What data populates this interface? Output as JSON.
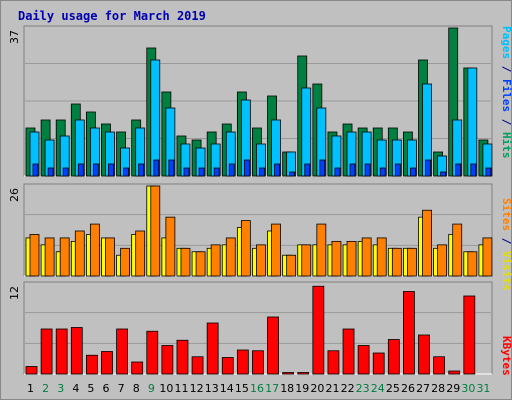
{
  "title": "Daily usage for March 2019",
  "colors": {
    "hits": "#008040",
    "files": "#00c0ff",
    "pages": "#0040ff",
    "visits": "#ffff00",
    "sites": "#ff8000",
    "kbytes": "#ff0000",
    "weekend_day": "#008040",
    "weekday_day": "#000000",
    "panel_bg": "#c0c0c0"
  },
  "chart_data": [
    {
      "type": "bar",
      "panel": "top",
      "ymax_label": "37",
      "ylim": [
        0,
        37
      ],
      "right_label_parts": [
        "Pages",
        " / ",
        "Files",
        " / ",
        "Hits"
      ],
      "categories": [
        "1",
        "2",
        "3",
        "4",
        "5",
        "6",
        "7",
        "8",
        "9",
        "10",
        "11",
        "12",
        "13",
        "14",
        "15",
        "16",
        "17",
        "18",
        "19",
        "20",
        "21",
        "22",
        "23",
        "24",
        "25",
        "26",
        "27",
        "28",
        "29",
        "30",
        "31"
      ],
      "series": [
        {
          "name": "Hits",
          "values": [
            12,
            14,
            14,
            18,
            16,
            13,
            11,
            14,
            32,
            21,
            10,
            9,
            11,
            13,
            21,
            12,
            20,
            6,
            30,
            23,
            11,
            13,
            12,
            12,
            12,
            11,
            29,
            6,
            37,
            27,
            9
          ]
        },
        {
          "name": "Files",
          "values": [
            11,
            9,
            10,
            14,
            12,
            11,
            7,
            12,
            29,
            17,
            8,
            7,
            8,
            11,
            19,
            8,
            14,
            6,
            22,
            17,
            10,
            11,
            11,
            9,
            9,
            9,
            23,
            5,
            14,
            27,
            8
          ]
        },
        {
          "name": "Pages",
          "values": [
            3,
            2,
            2,
            3,
            3,
            3,
            2,
            3,
            4,
            4,
            2,
            2,
            2,
            3,
            4,
            2,
            3,
            1,
            3,
            4,
            2,
            3,
            3,
            2,
            3,
            2,
            4,
            1,
            3,
            3,
            2
          ]
        }
      ]
    },
    {
      "type": "bar",
      "panel": "middle",
      "ymax_label": "26",
      "ylim": [
        0,
        26
      ],
      "right_label_parts": [
        "Sites",
        " / ",
        "Visits"
      ],
      "categories": [
        "1",
        "2",
        "3",
        "4",
        "5",
        "6",
        "7",
        "8",
        "9",
        "10",
        "11",
        "12",
        "13",
        "14",
        "15",
        "16",
        "17",
        "18",
        "19",
        "20",
        "21",
        "22",
        "23",
        "24",
        "25",
        "26",
        "27",
        "28",
        "29",
        "30",
        "31"
      ],
      "series": [
        {
          "name": "Visits",
          "values": [
            11,
            9,
            7,
            10,
            12,
            11,
            6,
            12,
            26,
            11,
            8,
            7,
            8,
            9,
            14,
            8,
            13,
            6,
            9,
            9,
            9,
            9,
            10,
            9,
            8,
            8,
            17,
            8,
            12,
            7,
            9
          ]
        },
        {
          "name": "Sites",
          "values": [
            12,
            11,
            11,
            13,
            15,
            11,
            8,
            13,
            26,
            17,
            8,
            7,
            9,
            11,
            16,
            9,
            15,
            6,
            9,
            15,
            10,
            10,
            11,
            11,
            8,
            8,
            19,
            9,
            15,
            7,
            11
          ]
        }
      ]
    },
    {
      "type": "bar",
      "panel": "bottom",
      "ymax_label": "12",
      "ylim": [
        0,
        12
      ],
      "right_label_parts": [
        "KBytes"
      ],
      "categories": [
        "1",
        "2",
        "3",
        "4",
        "5",
        "6",
        "7",
        "8",
        "9",
        "10",
        "11",
        "12",
        "13",
        "14",
        "15",
        "16",
        "17",
        "18",
        "19",
        "20",
        "21",
        "22",
        "23",
        "24",
        "25",
        "26",
        "27",
        "28",
        "29",
        "30",
        "31"
      ],
      "series": [
        {
          "name": "KBytes",
          "values": [
            1,
            6,
            6,
            6.2,
            2.5,
            3,
            6,
            1.6,
            5.7,
            3.8,
            4.5,
            2.3,
            6.8,
            2.2,
            3.2,
            3.1,
            7.6,
            0.1,
            0.1,
            11.7,
            3.1,
            6,
            3.8,
            2.8,
            4.6,
            11,
            5.2,
            2.3,
            0.4,
            10.4,
            0
          ]
        }
      ]
    }
  ],
  "weekend_days": [
    2,
    3,
    9,
    16,
    17,
    23,
    24,
    30,
    31
  ]
}
